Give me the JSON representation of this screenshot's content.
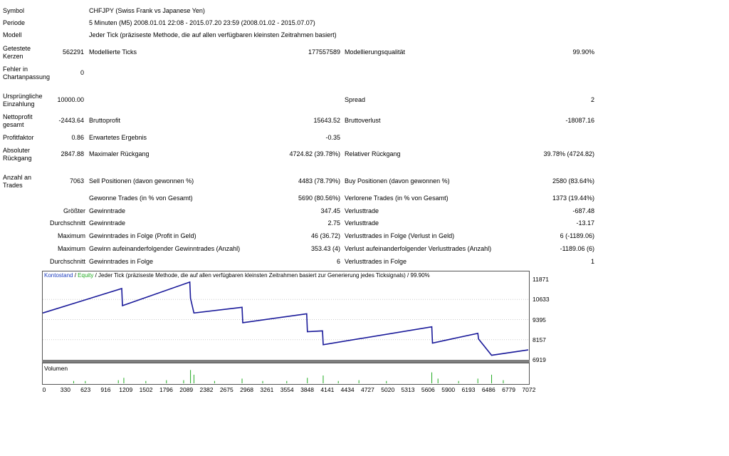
{
  "info": {
    "symbol_label": "Symbol",
    "symbol_value": "CHFJPY (Swiss Frank vs Japanese Yen)",
    "period_label": "Periode",
    "period_value": "5 Minuten (M5) 2008.01.01 22:08 - 2015.07.20 23:59 (2008.01.02 - 2015.07.07)",
    "model_label": "Modell",
    "model_value": "Jeder Tick (präziseste Methode, die auf allen verfügbaren kleinsten Zeitrahmen basiert)"
  },
  "stats": {
    "bars_label_1": "Getestete",
    "bars_label_2": "Kerzen",
    "bars_value": "562291",
    "ticks_label": "Modellierte Ticks",
    "ticks_value": "177557589",
    "quality_label": "Modellierungsqualität",
    "quality_value": "99.90%",
    "mismatch_label_1": "Fehler in",
    "mismatch_label_2": "Chartanpassung",
    "mismatch_value": "0",
    "deposit_label_1": "Ursprüngliche",
    "deposit_label_2": "Einzahlung",
    "deposit_value": "10000.00",
    "spread_label": "Spread",
    "spread_value": "2",
    "netprofit_label_1": "Nettoprofit",
    "netprofit_label_2": "gesamt",
    "netprofit_value": "-2443.64",
    "grossprofit_label": "Bruttoprofit",
    "grossprofit_value": "15643.52",
    "grossloss_label": "Bruttoverlust",
    "grossloss_value": "-18087.16",
    "pf_label": "Profitfaktor",
    "pf_value": "0.86",
    "expected_label": "Erwartetes Ergebnis",
    "expected_value": "-0.35",
    "absdd_label_1": "Absoluter",
    "absdd_label_2": "Rückgang",
    "absdd_value": "2847.88",
    "maxdd_label": "Maximaler Rückgang",
    "maxdd_value": "4724.82 (39.78%)",
    "reldd_label": "Relativer Rückgang",
    "reldd_value": "39.78% (4724.82)",
    "trades_label_1": "Anzahl an",
    "trades_label_2": "Trades",
    "trades_value": "7063",
    "sell_label": "Sell Positionen (davon gewonnen %)",
    "sell_value": "4483 (78.79%)",
    "buy_label": "Buy Positionen (davon gewonnen %)",
    "buy_value": "2580 (83.64%)",
    "won_label": "Gewonne Trades (in % von Gesamt)",
    "won_value": "5690 (80.56%)",
    "lost_label": "Verlorene Trades (in % von Gesamt)",
    "lost_value": "1373 (19.44%)",
    "largest_prefix": "Größter",
    "largest_win_label": "Gewinntrade",
    "largest_win_value": "347.45",
    "largest_loss_label": "Verlusttrade",
    "largest_loss_value": "-687.48",
    "avg_prefix": "Durchschnitt",
    "avg_win_label": "Gewinntrade",
    "avg_win_value": "2.75",
    "avg_loss_label": "Verlusttrade",
    "avg_loss_value": "-13.17",
    "max1_prefix": "Maximum",
    "maxconswin_label": "Gewinntrades in Folge (Profit in Geld)",
    "maxconswin_value": "46 (36.72)",
    "maxconsloss_label": "Verlusttrades in Folge (Verlust in Geld)",
    "maxconsloss_value": "6 (-1189.06)",
    "max2_prefix": "Maximum",
    "maxconsprofit_label": "Gewinn aufeinanderfolgender Gewinntrades (Anzahl)",
    "maxconsprofit_value": "353.43 (4)",
    "maxconslossamt_label": "Verlust aufeinanderfolgender Verlusttrades (Anzahl)",
    "maxconslossamt_value": "-1189.06 (6)",
    "avg2_prefix": "Durchschnitt",
    "avgconswin_label": "Gewinntrades in Folge",
    "avgconswin_value": "6",
    "avgconsloss_label": "Verlusttrades in Folge",
    "avgconsloss_value": "1"
  },
  "chart_header": {
    "balance": "Kontostand",
    "sep1": " / ",
    "equity": "Equity",
    "rest": " / Jeder Tick (präziseste Methode, die auf allen verfügbaren kleinsten Zeitrahmen basiert zur Generierung jedes Ticksignals) / 99.90%"
  },
  "volume_label": "Volumen",
  "colors": {
    "balance_line": "#1a1a9a",
    "volume_bars": "#22aa22",
    "separator": "#7f7f7f"
  },
  "chart_data": {
    "type": "line",
    "ylim": [
      6919,
      11871
    ],
    "y_ticks": [
      "11871",
      "10633",
      "9395",
      "8157",
      "6919"
    ],
    "x_ticks": [
      "0",
      "330",
      "623",
      "916",
      "1209",
      "1502",
      "1796",
      "2089",
      "2382",
      "2675",
      "2968",
      "3261",
      "3554",
      "3848",
      "4141",
      "4434",
      "4727",
      "5020",
      "5313",
      "5606",
      "5900",
      "6193",
      "6486",
      "6779",
      "7072"
    ],
    "series": [
      {
        "x": [
          0,
          1150,
          1160,
          2140,
          2150,
          2200,
          2900,
          2910,
          3840,
          3850,
          4070,
          4080,
          5660,
          5670,
          6330,
          6340,
          6530,
          7063
        ],
        "values": [
          9800,
          11300,
          10250,
          11700,
          10700,
          9800,
          10150,
          9200,
          9750,
          8650,
          8700,
          7850,
          8950,
          7950,
          8550,
          8200,
          7200,
          7530
        ]
      }
    ],
    "volume": [
      {
        "x": 450,
        "v": 0.15
      },
      {
        "x": 620,
        "v": 0.15
      },
      {
        "x": 1100,
        "v": 0.2
      },
      {
        "x": 1180,
        "v": 0.35
      },
      {
        "x": 1500,
        "v": 0.15
      },
      {
        "x": 1800,
        "v": 0.2
      },
      {
        "x": 2050,
        "v": 0.2
      },
      {
        "x": 2150,
        "v": 0.85
      },
      {
        "x": 2200,
        "v": 0.55
      },
      {
        "x": 2500,
        "v": 0.15
      },
      {
        "x": 2900,
        "v": 0.3
      },
      {
        "x": 3200,
        "v": 0.15
      },
      {
        "x": 3550,
        "v": 0.15
      },
      {
        "x": 3850,
        "v": 0.35
      },
      {
        "x": 4080,
        "v": 0.5
      },
      {
        "x": 4300,
        "v": 0.15
      },
      {
        "x": 4600,
        "v": 0.2
      },
      {
        "x": 5000,
        "v": 0.15
      },
      {
        "x": 5660,
        "v": 0.7
      },
      {
        "x": 5750,
        "v": 0.3
      },
      {
        "x": 6050,
        "v": 0.15
      },
      {
        "x": 6330,
        "v": 0.3
      },
      {
        "x": 6530,
        "v": 0.55
      },
      {
        "x": 6700,
        "v": 0.2
      }
    ]
  }
}
